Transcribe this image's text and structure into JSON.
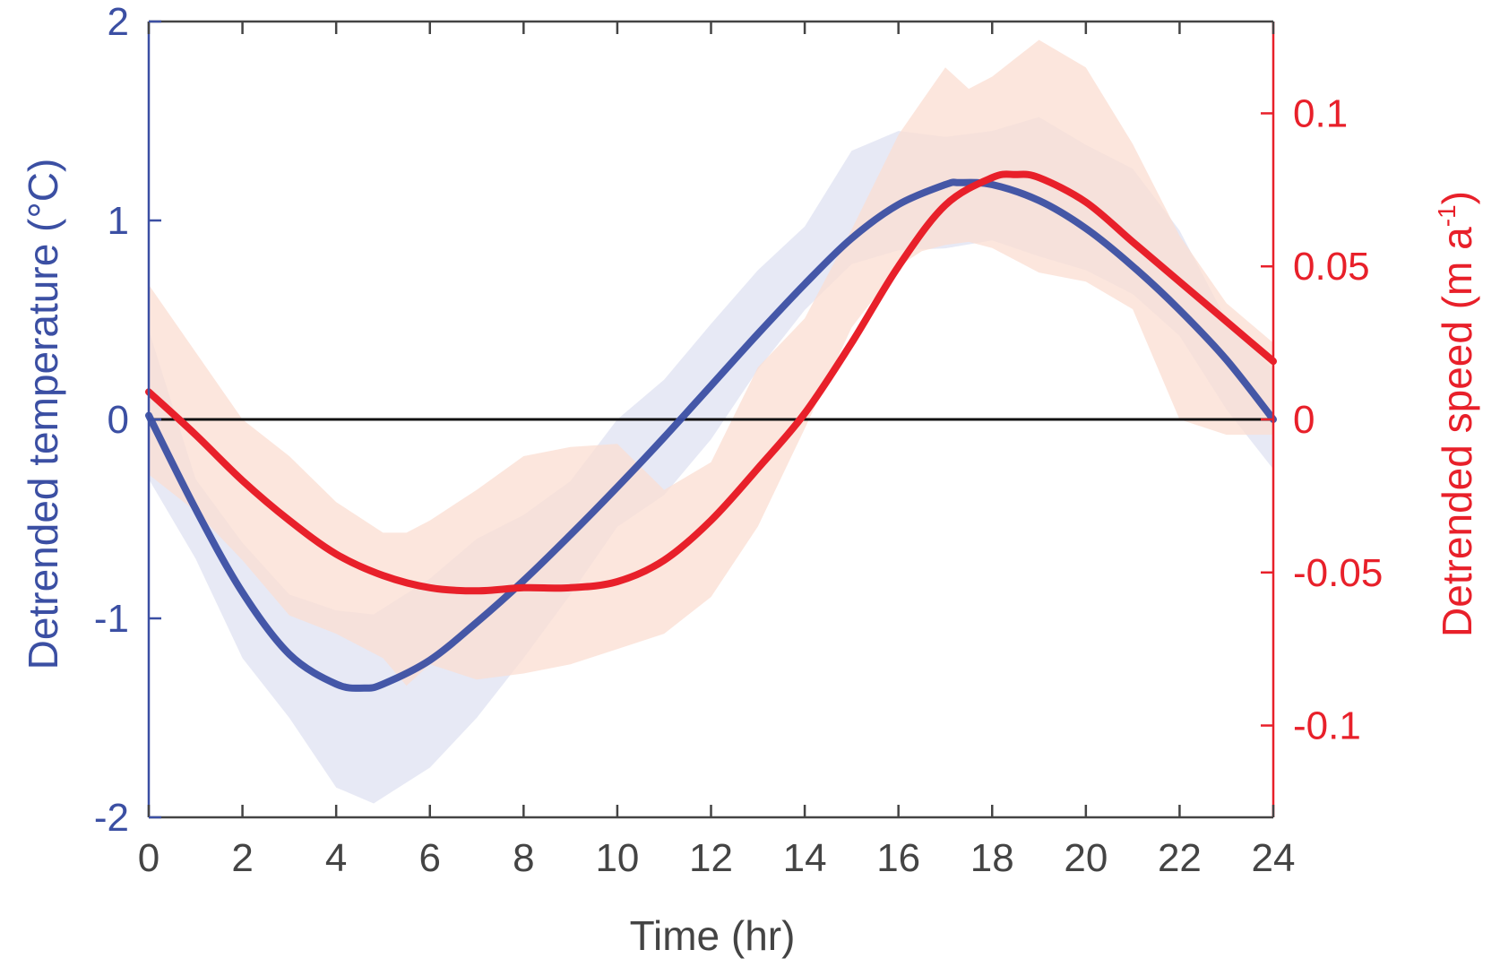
{
  "chart_data": {
    "type": "line",
    "xlabel": "Time (hr)",
    "ylabel_left": "Detrended temperature (°C)",
    "ylabel_right_main": "Detrended speed (m a",
    "ylabel_right_sup": "-1",
    "ylabel_right_end": ")",
    "xlim": [
      0,
      24
    ],
    "ylim_left": [
      -2,
      2
    ],
    "ylim_right": [
      -0.13,
      0.13
    ],
    "xticks": [
      0,
      2,
      4,
      6,
      8,
      10,
      12,
      14,
      16,
      18,
      20,
      22,
      24
    ],
    "xtick_labels": [
      "0",
      "2",
      "4",
      "6",
      "8",
      "10",
      "12",
      "14",
      "16",
      "18",
      "20",
      "22",
      "24"
    ],
    "yticks_left": [
      -2,
      -1,
      0,
      1,
      2
    ],
    "ytick_labels_left": [
      "-2",
      "-1",
      "0",
      "1",
      "2"
    ],
    "yticks_right": [
      -0.1,
      -0.05,
      0,
      0.05,
      0.1
    ],
    "ytick_labels_right": [
      "-0.1",
      "-0.05",
      "0",
      "0.05",
      "0.1"
    ],
    "grid": false,
    "zero_line": 0,
    "colors": {
      "temperature": "#3b4fa3",
      "temperature_band": "#dfe2f1",
      "speed": "#e8202a",
      "speed_band": "#fbddd2",
      "left_axis": "#3b4fa3",
      "right_axis": "#e8202a",
      "x_axis": "#444444",
      "zero_line": "#111111"
    },
    "series": [
      {
        "axis": "left",
        "x": [
          0,
          1,
          2,
          3,
          4,
          4.6,
          5,
          6,
          7,
          8,
          9,
          10,
          11,
          12,
          13,
          14,
          15,
          16,
          17,
          17.3,
          18,
          19,
          20,
          21,
          22,
          23,
          24
        ],
        "y": [
          0.02,
          -0.45,
          -0.87,
          -1.18,
          -1.33,
          -1.35,
          -1.33,
          -1.21,
          -1.02,
          -0.81,
          -0.58,
          -0.34,
          -0.09,
          0.17,
          0.43,
          0.68,
          0.91,
          1.08,
          1.18,
          1.19,
          1.18,
          1.1,
          0.96,
          0.77,
          0.55,
          0.3,
          0.0
        ],
        "band_x": [
          0,
          1,
          2,
          3,
          4,
          4.8,
          5,
          6,
          7,
          8,
          9,
          10,
          11,
          12,
          13,
          14,
          15,
          16,
          17,
          18,
          19,
          20,
          21,
          22,
          23,
          24
        ],
        "band_upper": [
          0.45,
          -0.3,
          -0.62,
          -0.88,
          -0.96,
          -0.98,
          -0.95,
          -0.8,
          -0.6,
          -0.48,
          -0.31,
          0.0,
          0.2,
          0.48,
          0.75,
          0.97,
          1.35,
          1.45,
          1.42,
          1.45,
          1.52,
          1.38,
          1.26,
          0.95,
          0.5,
          0.25
        ],
        "band_lower": [
          -0.3,
          -0.7,
          -1.2,
          -1.5,
          -1.85,
          -1.93,
          -1.9,
          -1.75,
          -1.5,
          -1.2,
          -0.88,
          -0.54,
          -0.38,
          -0.1,
          0.25,
          0.55,
          0.78,
          0.85,
          0.86,
          0.9,
          0.82,
          0.75,
          0.63,
          0.42,
          0.05,
          -0.25
        ]
      },
      {
        "axis": "right",
        "x": [
          0,
          1,
          2,
          3,
          4,
          5,
          6,
          7,
          8,
          9,
          10,
          11,
          12,
          13,
          14,
          15,
          16,
          17,
          18,
          18.5,
          19,
          20,
          21,
          22,
          23,
          24
        ],
        "y": [
          0.009,
          -0.005,
          -0.02,
          -0.033,
          -0.044,
          -0.051,
          -0.055,
          -0.056,
          -0.055,
          -0.055,
          -0.053,
          -0.046,
          -0.033,
          -0.016,
          0.002,
          0.025,
          0.05,
          0.07,
          0.079,
          0.08,
          0.079,
          0.071,
          0.058,
          0.045,
          0.032,
          0.019
        ],
        "band_x": [
          0,
          1,
          2,
          3,
          4,
          5,
          5.5,
          6,
          7,
          8,
          9,
          10,
          11,
          12,
          13,
          14,
          15,
          16,
          16.5,
          17,
          17.5,
          18,
          19,
          20,
          21,
          22,
          23,
          24
        ],
        "band_upper": [
          0.044,
          0.022,
          0.0,
          -0.012,
          -0.027,
          -0.037,
          -0.037,
          -0.033,
          -0.023,
          -0.012,
          -0.009,
          -0.008,
          -0.023,
          -0.014,
          0.017,
          0.033,
          0.062,
          0.093,
          0.104,
          0.115,
          0.108,
          0.112,
          0.124,
          0.115,
          0.09,
          0.06,
          0.038,
          0.025
        ],
        "band_lower": [
          -0.018,
          -0.03,
          -0.046,
          -0.064,
          -0.07,
          -0.078,
          -0.087,
          -0.08,
          -0.085,
          -0.083,
          -0.08,
          -0.075,
          -0.07,
          -0.058,
          -0.035,
          -0.003,
          0.03,
          0.05,
          0.055,
          0.057,
          0.058,
          0.056,
          0.048,
          0.045,
          0.036,
          0.0,
          -0.005,
          -0.005
        ]
      }
    ]
  }
}
